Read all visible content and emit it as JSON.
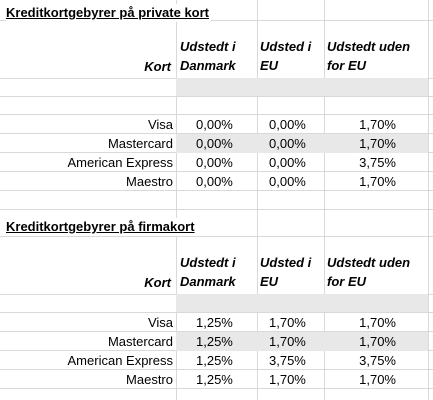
{
  "private": {
    "title": "Kreditkortgebyrer på private kort",
    "header": {
      "kort": "Kort",
      "col1": "Udstedt i\nDanmark",
      "col2": "Udsted i\nEU",
      "col3": "Udstedt uden\nfor EU"
    },
    "rows": [
      {
        "name": "Visa",
        "dk": "0,00%",
        "eu": "0,00%",
        "non_eu": "1,70%"
      },
      {
        "name": "Mastercard",
        "dk": "0,00%",
        "eu": "0,00%",
        "non_eu": "1,70%"
      },
      {
        "name": "American Express",
        "dk": "0,00%",
        "eu": "0,00%",
        "non_eu": "3,75%"
      },
      {
        "name": "Maestro",
        "dk": "0,00%",
        "eu": "0,00%",
        "non_eu": "1,70%"
      }
    ]
  },
  "business": {
    "title": "Kreditkortgebyrer på firmakort",
    "header": {
      "kort": "Kort",
      "col1": "Udstedt i\nDanmark",
      "col2": "Udsted i\nEU",
      "col3": "Udstedt uden\nfor EU"
    },
    "rows": [
      {
        "name": "Visa",
        "dk": "1,25%",
        "eu": "1,70%",
        "non_eu": "1,70%"
      },
      {
        "name": "Mastercard",
        "dk": "1,25%",
        "eu": "1,70%",
        "non_eu": "1,70%"
      },
      {
        "name": "American Express",
        "dk": "1,25%",
        "eu": "3,75%",
        "non_eu": "3,75%"
      },
      {
        "name": "Maestro",
        "dk": "1,25%",
        "eu": "1,70%",
        "non_eu": "1,70%"
      }
    ]
  },
  "colors": {
    "shade": "#e8e8e8",
    "gridline": "#d9d9d9"
  }
}
